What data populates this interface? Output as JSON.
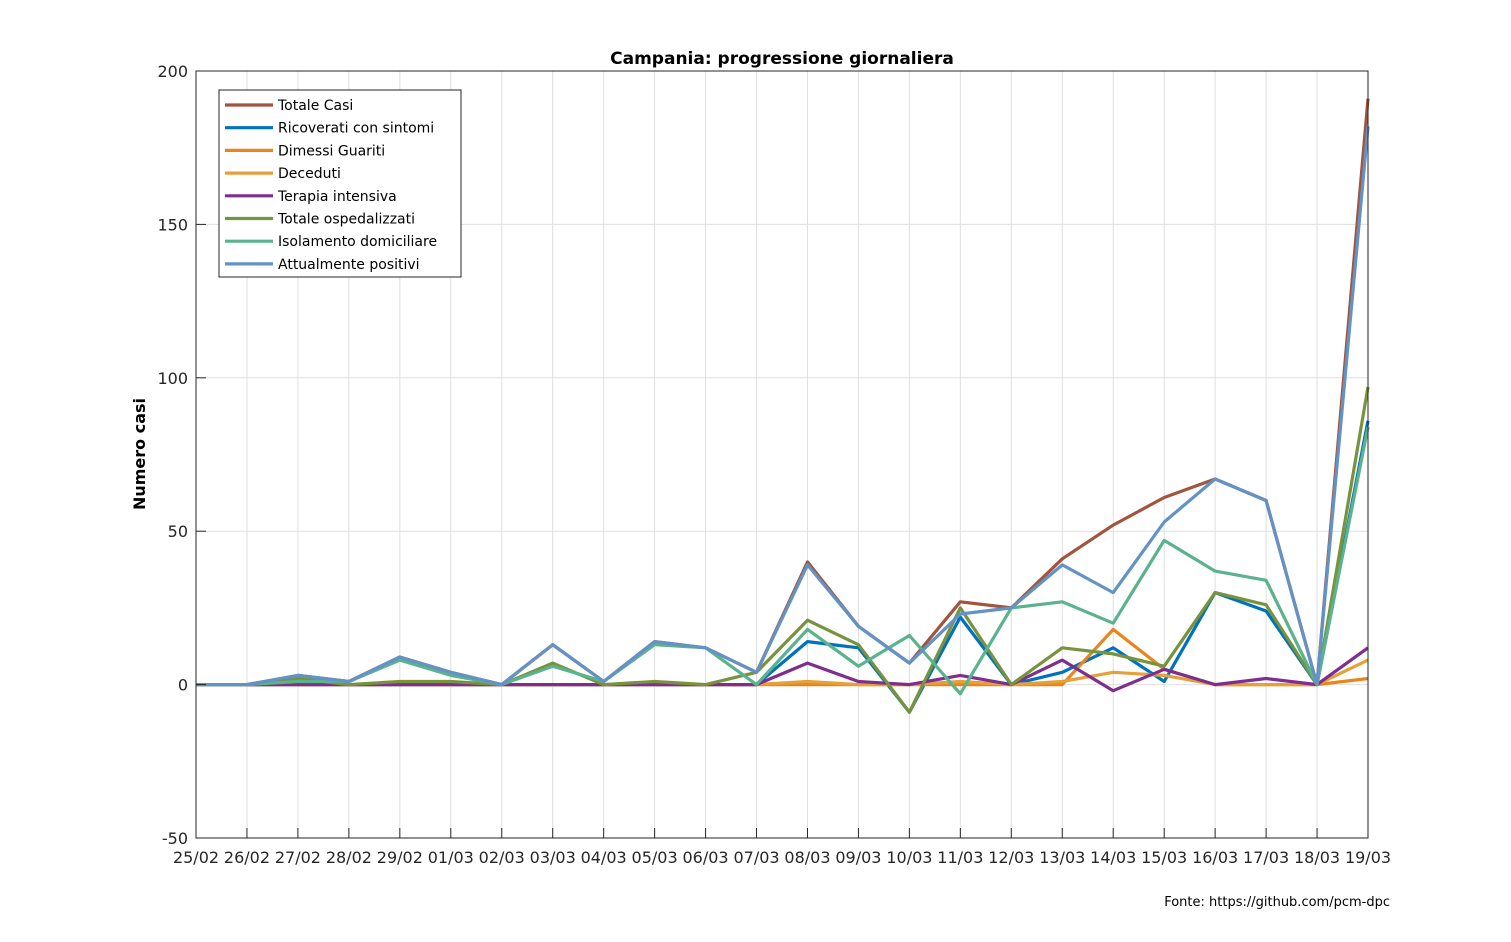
{
  "chart_data": {
    "type": "line",
    "title": "Campania: progressione giornaliera",
    "xlabel": "",
    "ylabel": "Numero casi",
    "ylim": [
      -50,
      200
    ],
    "yticks": [
      -50,
      0,
      50,
      100,
      150,
      200
    ],
    "grid": true,
    "legend_position": "top-left",
    "categories": [
      "25/02",
      "26/02",
      "27/02",
      "28/02",
      "29/02",
      "01/03",
      "02/03",
      "03/03",
      "04/03",
      "05/03",
      "06/03",
      "07/03",
      "08/03",
      "09/03",
      "10/03",
      "11/03",
      "12/03",
      "13/03",
      "14/03",
      "15/03",
      "16/03",
      "17/03",
      "18/03",
      "19/03"
    ],
    "series": [
      {
        "name": "Totale Casi",
        "color": "#A2553E",
        "values": [
          0,
          0,
          3,
          1,
          9,
          4,
          0,
          13,
          1,
          14,
          12,
          4,
          40,
          19,
          7,
          27,
          25,
          41,
          52,
          61,
          67,
          60,
          0,
          191
        ]
      },
      {
        "name": "Ricoverati con sintomi",
        "color": "#0072BD",
        "values": [
          0,
          0,
          0,
          0,
          0,
          0,
          0,
          0,
          0,
          0,
          0,
          0,
          14,
          12,
          -9,
          22,
          0,
          4,
          12,
          1,
          30,
          24,
          0,
          86
        ]
      },
      {
        "name": "Dimessi Guariti",
        "color": "#E8851D",
        "values": [
          0,
          0,
          0,
          0,
          0,
          0,
          0,
          0,
          0,
          0,
          0,
          0,
          0,
          0,
          0,
          0,
          0,
          0,
          18,
          5,
          0,
          0,
          0,
          2
        ]
      },
      {
        "name": "Deceduti",
        "color": "#E6A03A",
        "values": [
          0,
          0,
          0,
          0,
          0,
          0,
          0,
          0,
          0,
          0,
          0,
          0,
          1,
          0,
          0,
          1,
          0,
          1,
          4,
          3,
          0,
          0,
          0,
          8
        ]
      },
      {
        "name": "Terapia intensiva",
        "color": "#7E2F8E",
        "values": [
          0,
          0,
          0,
          0,
          0,
          0,
          0,
          0,
          0,
          0,
          0,
          0,
          7,
          1,
          0,
          3,
          0,
          8,
          -2,
          5,
          0,
          2,
          0,
          12
        ]
      },
      {
        "name": "Totale ospedalizzati",
        "color": "#77933C",
        "values": [
          0,
          0,
          2,
          0,
          1,
          1,
          0,
          7,
          0,
          1,
          0,
          4,
          21,
          13,
          -9,
          25,
          0,
          12,
          10,
          6,
          30,
          26,
          0,
          97
        ]
      },
      {
        "name": "Isolamento domiciliare",
        "color": "#5BB38E",
        "values": [
          0,
          0,
          1,
          1,
          8,
          3,
          0,
          6,
          1,
          13,
          12,
          0,
          18,
          6,
          16,
          -3,
          25,
          27,
          20,
          47,
          37,
          34,
          0,
          84
        ]
      },
      {
        "name": "Attualmente positivi",
        "color": "#6392C5",
        "values": [
          0,
          0,
          3,
          1,
          9,
          4,
          0,
          13,
          1,
          14,
          12,
          4,
          39,
          19,
          7,
          23,
          25,
          39,
          30,
          53,
          67,
          60,
          0,
          182
        ]
      }
    ]
  },
  "footer": {
    "source": "Fonte: https://github.com/pcm-dpc"
  }
}
